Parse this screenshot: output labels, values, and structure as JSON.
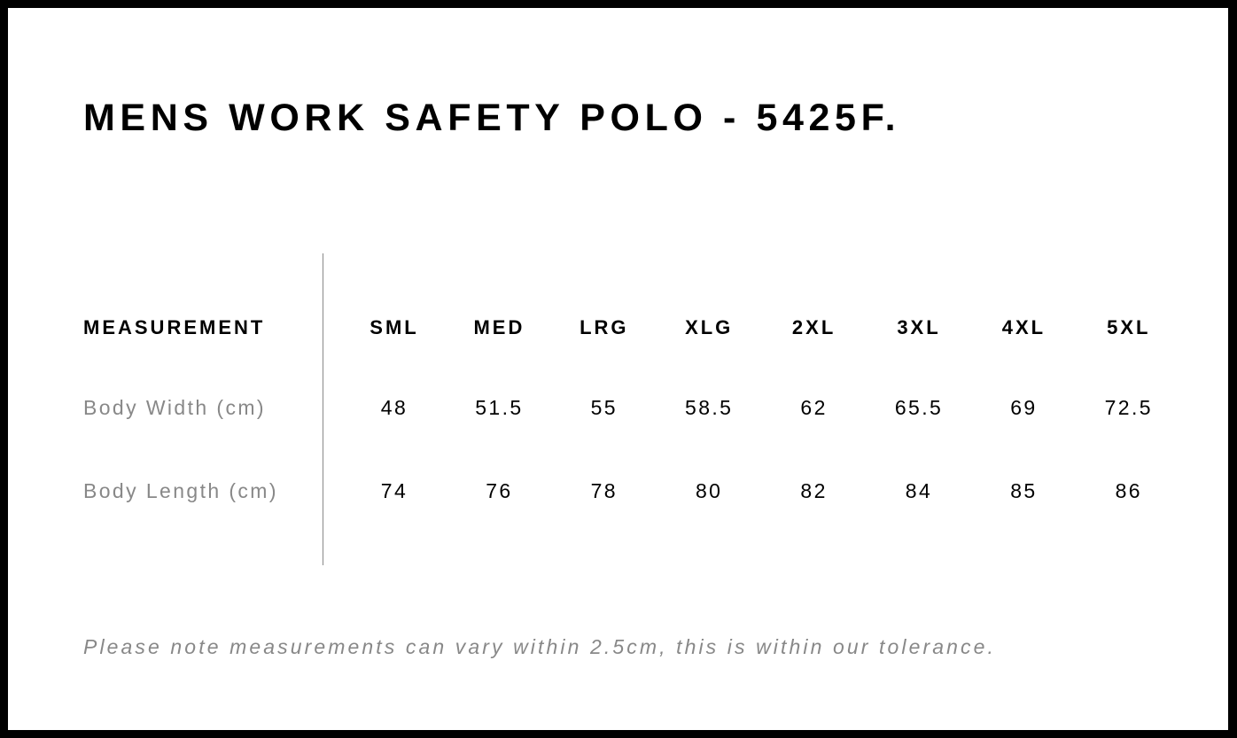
{
  "title": "MENS WORK SAFETY POLO - 5425F.",
  "table": {
    "header_label": "MEASUREMENT",
    "sizes": [
      "SML",
      "MED",
      "LRG",
      "XLG",
      "2XL",
      "3XL",
      "4XL",
      "5XL"
    ],
    "rows": [
      {
        "label": "Body Width (cm)",
        "values": [
          "48",
          "51.5",
          "55",
          "58.5",
          "62",
          "65.5",
          "69",
          "72.5"
        ]
      },
      {
        "label": "Body Length (cm)",
        "values": [
          "74",
          "76",
          "78",
          "80",
          "82",
          "84",
          "85",
          "86"
        ]
      }
    ]
  },
  "note": "Please note measurements can vary within 2.5cm, this is within our tolerance.",
  "colors": {
    "frame": "#000000",
    "label_gray": "#888888"
  }
}
